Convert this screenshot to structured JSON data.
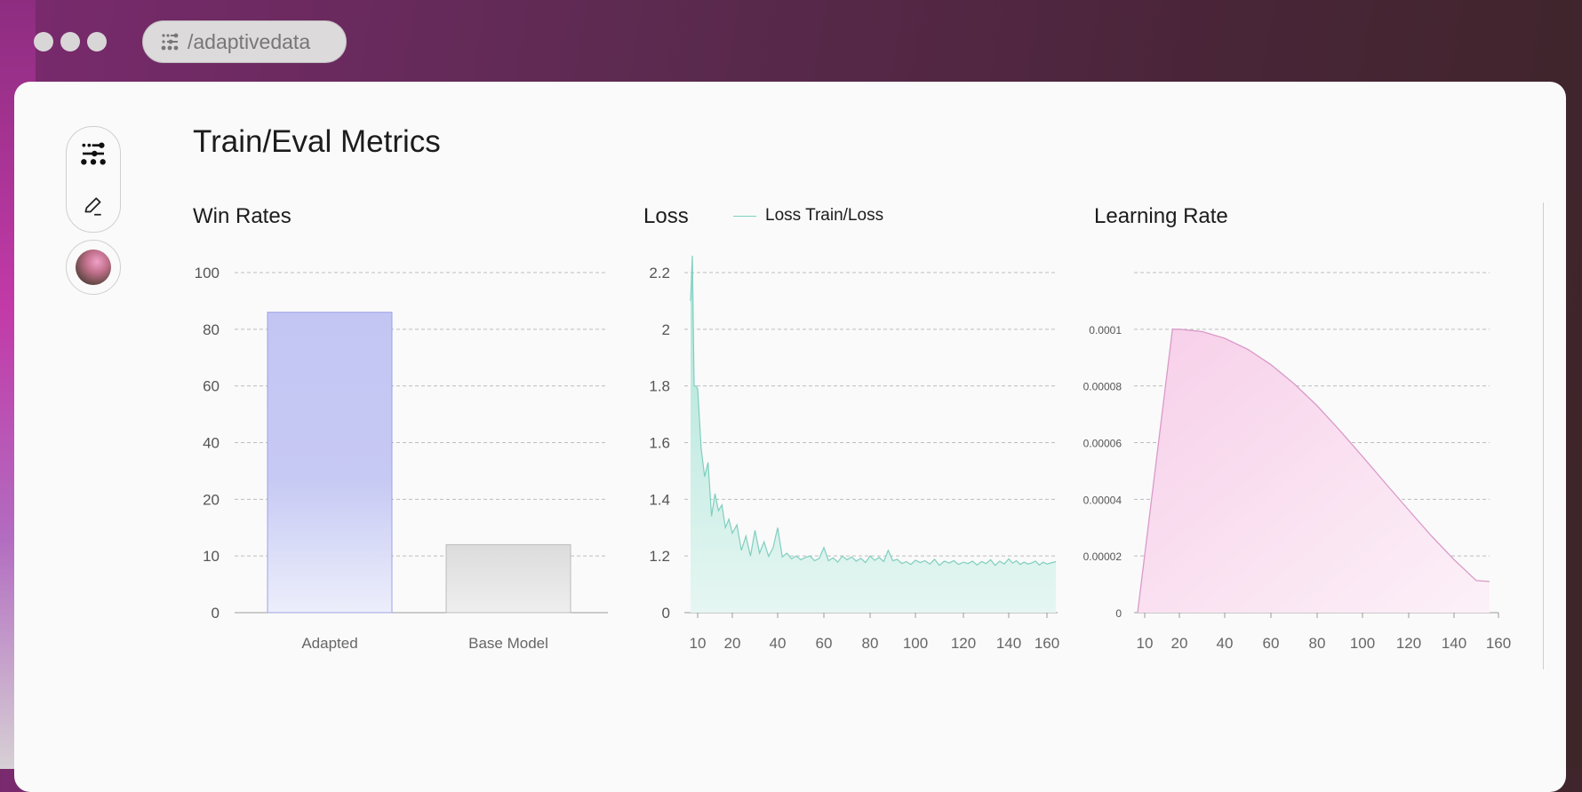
{
  "window": {
    "url_text": "/adaptivedata",
    "sidebar_icons": [
      "sliders-icon",
      "edit-pen-icon"
    ],
    "avatar": "avatar"
  },
  "page": {
    "title": "Train/Eval Metrics"
  },
  "charts": {
    "win": {
      "title": "Win Rates"
    },
    "loss": {
      "title": "Loss",
      "legend": "Loss Train/Loss"
    },
    "lr": {
      "title": "Learning Rate"
    }
  },
  "colors": {
    "adapted_bar": "#c3c6f3",
    "base_bar": "#dedede",
    "loss_line": "#7fcfbf",
    "lr_line": "#d99ac9"
  },
  "chart_data": [
    {
      "type": "bar",
      "title": "Win Rates",
      "categories": [
        "Adapted",
        "Base Model"
      ],
      "values": [
        86,
        12
      ],
      "yticks": [
        "0",
        "10",
        "20",
        "40",
        "60",
        "80",
        "100"
      ],
      "grid": true
    },
    {
      "type": "area",
      "title": "Loss",
      "series": [
        {
          "name": "Loss Train/Loss",
          "x": [
            6,
            7,
            8,
            9,
            10,
            11,
            12,
            13,
            14,
            15,
            16,
            17,
            18,
            19,
            20,
            22,
            24,
            26,
            28,
            30,
            32,
            34,
            36,
            38,
            40,
            42,
            44,
            46,
            48,
            50,
            52,
            54,
            56,
            58,
            60,
            62,
            64,
            66,
            68,
            70,
            72,
            74,
            76,
            78,
            80,
            82,
            84,
            86,
            88,
            90,
            92,
            94,
            96,
            98,
            100,
            102,
            104,
            106,
            108,
            110,
            112,
            114,
            116,
            118,
            120,
            122,
            124,
            126,
            128,
            130,
            132,
            134,
            136,
            138,
            140,
            142,
            144,
            146,
            148,
            150,
            152,
            154,
            156,
            158,
            160,
            162
          ],
          "y": [
            2.1,
            2.26,
            1.8,
            1.8,
            1.79,
            1.58,
            1.48,
            1.53,
            1.34,
            1.42,
            1.36,
            1.38,
            1.3,
            1.33,
            1.28,
            1.31,
            1.22,
            1.27,
            1.2,
            1.29,
            1.21,
            1.25,
            1.19,
            1.23,
            1.3,
            1.18,
            1.21,
            1.14,
            1.2,
            1.12,
            1.17,
            1.2,
            1.1,
            1.15,
            1.23,
            1.1,
            1.16,
            1.07,
            1.2,
            1.12,
            1.18,
            1.09,
            1.15,
            1.06,
            1.2,
            1.11,
            1.17,
            1.08,
            1.22,
            1.1,
            1.13,
            1.04,
            1.08,
            1.02,
            1.11,
            1.06,
            1.1,
            1.03,
            1.13,
            1.0,
            1.09,
            1.05,
            1.1,
            1.02,
            1.07,
            1.04,
            1.09,
            1.01,
            1.08,
            1.04,
            1.12,
            1.0,
            1.09,
            1.03,
            1.14,
            1.05,
            1.1,
            1.02,
            1.07,
            1.03,
            1.05,
            1.09,
            1.01,
            1.07,
            1.03,
            1.08
          ]
        }
      ],
      "yticks": [
        "0",
        "1.2",
        "1.4",
        "1.6",
        "1.8",
        "2",
        "2.2"
      ],
      "xticks": [
        "10",
        "20",
        "40",
        "60",
        "80",
        "100",
        "120",
        "140",
        "160"
      ],
      "grid": true
    },
    {
      "type": "area",
      "title": "Learning Rate",
      "series": [
        {
          "x": [
            2,
            18,
            20,
            30,
            40,
            50,
            60,
            70,
            80,
            90,
            100,
            110,
            120,
            130,
            140,
            150,
            156
          ],
          "y": [
            0.0,
            0.0001,
            0.0001,
            9.92e-05,
            9.68e-05,
            9.29e-05,
            8.75e-05,
            8.08e-05,
            7.3e-05,
            6.43e-05,
            5.51e-05,
            4.56e-05,
            3.62e-05,
            2.71e-05,
            1.87e-05,
            1.13e-05,
            1.1e-05
          ]
        }
      ],
      "yticks": [
        "0",
        "0.00002",
        "0.00004",
        "0.00006",
        "0.00008",
        "0.0001"
      ],
      "xticks": [
        "10",
        "20",
        "40",
        "60",
        "80",
        "100",
        "120",
        "140",
        "160"
      ],
      "grid": true
    }
  ]
}
